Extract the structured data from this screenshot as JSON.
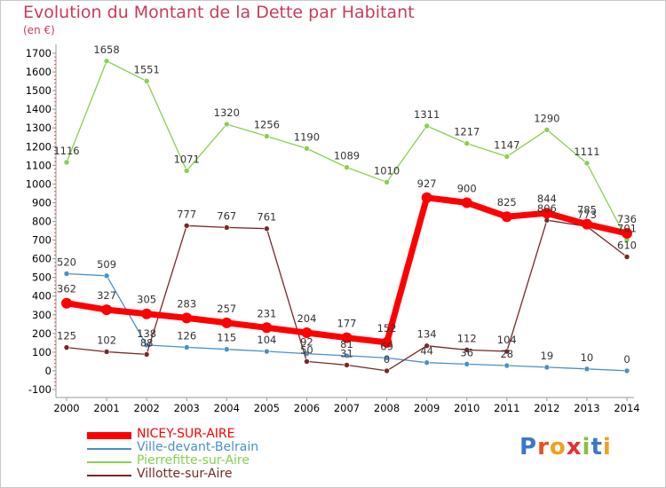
{
  "title": "Evolution du Montant de la Dette par Habitant",
  "unit": "(en €)",
  "brand": "Proxiti",
  "chart_data": {
    "type": "line",
    "title": "Evolution du Montant de la Dette par Habitant",
    "ylabel": "(en €)",
    "xlabel": "",
    "ylim": [
      -100,
      1700
    ],
    "ytick_step": 100,
    "grid": false,
    "legend": "bottom-left",
    "x": [
      2000,
      2001,
      2002,
      2003,
      2004,
      2005,
      2006,
      2007,
      2008,
      2009,
      2010,
      2011,
      2012,
      2013,
      2014
    ],
    "series": [
      {
        "name": "NICEY-SUR-AIRE",
        "color": "#ff0000",
        "width": 7,
        "r": 6,
        "values": [
          362,
          327,
          305,
          283,
          257,
          231,
          204,
          177,
          152,
          927,
          900,
          825,
          844,
          785,
          736
        ]
      },
      {
        "name": "Ville-devant-Belrain",
        "color": "#4a90c8",
        "width": 1.3,
        "r": 3,
        "values": [
          520,
          509,
          138,
          126,
          115,
          104,
          92,
          81,
          69,
          44,
          36,
          28,
          19,
          10,
          0
        ]
      },
      {
        "name": "Pierrefitte-sur-Aire",
        "color": "#88d050",
        "width": 1.3,
        "r": 3,
        "values": [
          1116,
          1658,
          1551,
          1071,
          1320,
          1256,
          1190,
          1089,
          1010,
          1311,
          1217,
          1147,
          1290,
          1111,
          701
        ]
      },
      {
        "name": "Villotte-sur-Aire",
        "color": "#782828",
        "width": 1.3,
        "r": 3,
        "values": [
          125,
          102,
          88,
          777,
          767,
          761,
          50,
          31,
          0,
          134,
          112,
          104,
          806,
          773,
          610
        ]
      }
    ]
  }
}
